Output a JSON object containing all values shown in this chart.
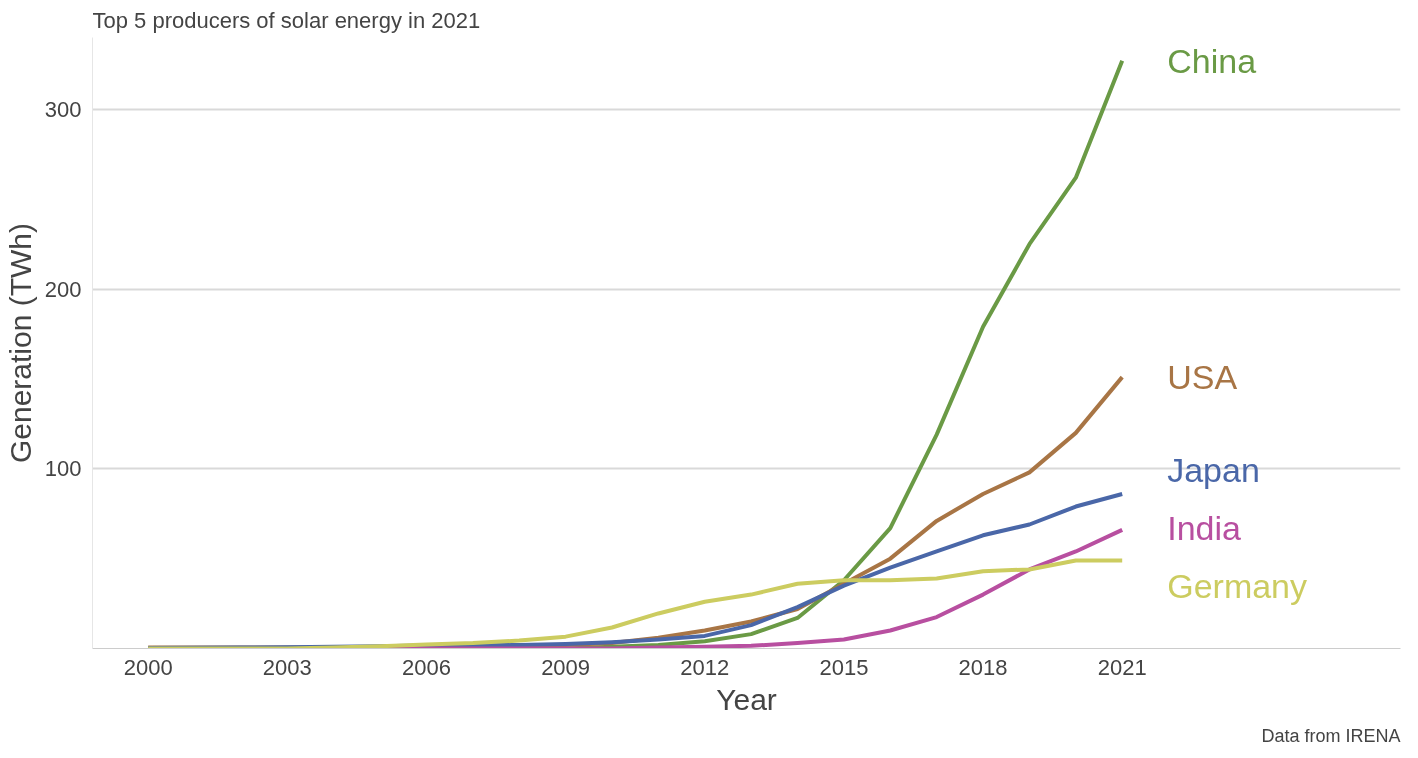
{
  "chart_data": {
    "type": "line",
    "title": "Top 5 producers of solar energy in 2021",
    "xlabel": "Year",
    "ylabel": "Generation (TWh)",
    "annotations": [
      "Data from IRENA"
    ],
    "x": [
      2000,
      2001,
      2002,
      2003,
      2004,
      2005,
      2006,
      2007,
      2008,
      2009,
      2010,
      2011,
      2012,
      2013,
      2014,
      2015,
      2016,
      2017,
      2018,
      2019,
      2020,
      2021
    ],
    "series": [
      {
        "name": "China",
        "color": "#6a9a45",
        "values": [
          null,
          null,
          null,
          0,
          0,
          0,
          0,
          0,
          0,
          0,
          1,
          2,
          4,
          8,
          17,
          38,
          67,
          119,
          179,
          225,
          262,
          327
        ]
      },
      {
        "name": "USA",
        "color": "#a87545",
        "values": [
          0.5,
          0.5,
          0.6,
          0.5,
          0.6,
          0.6,
          0.8,
          1,
          1.5,
          2,
          3,
          6,
          10,
          15,
          22,
          36,
          50,
          71,
          86,
          98,
          120,
          151
        ]
      },
      {
        "name": "Japan",
        "color": "#4a67a8",
        "values": [
          0.3,
          0.4,
          0.5,
          0.7,
          1,
          1.3,
          1.6,
          1.8,
          2,
          2.5,
          3.5,
          5,
          7,
          13,
          23,
          35,
          45,
          54,
          63,
          69,
          79,
          86
        ]
      },
      {
        "name": "India",
        "color": "#b84fa0",
        "values": [
          null,
          null,
          null,
          null,
          0,
          0,
          0,
          0,
          0,
          0,
          0,
          0.5,
          1,
          1.5,
          3,
          5,
          10,
          17.5,
          30,
          44,
          54,
          66
        ]
      },
      {
        "name": "Germany",
        "color": "#cccc60",
        "values": [
          0,
          0,
          0,
          0,
          0.6,
          1.3,
          2.2,
          3,
          4.4,
          6.6,
          11.7,
          19.5,
          26,
          30,
          36,
          38,
          38,
          39,
          43,
          44,
          49,
          49
        ]
      }
    ],
    "xlim": [
      1998.8,
      2027
    ],
    "ylim": [
      0,
      340
    ],
    "xticks": [
      2000,
      2003,
      2006,
      2009,
      2012,
      2015,
      2018,
      2021
    ],
    "yticks": [
      100,
      200,
      300
    ],
    "grid": "y",
    "line_style": "solid",
    "marker": "none"
  }
}
